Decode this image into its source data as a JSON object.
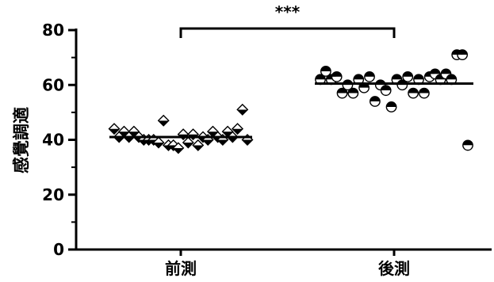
{
  "chart_data": {
    "type": "scatter",
    "title": "",
    "xlabel": "",
    "ylabel": "感覺調適",
    "ylim": [
      0,
      80
    ],
    "yticks": [
      0,
      20,
      40,
      60,
      80
    ],
    "categories": [
      "前測",
      "後測"
    ],
    "grid": false,
    "legend": "none",
    "series": [
      {
        "category": "前測",
        "marker": "half-filled-diamond",
        "mean": 41,
        "values": [
          44,
          41,
          43,
          41,
          43,
          41,
          40,
          40,
          40,
          39,
          47,
          38,
          38,
          37,
          42,
          39,
          42,
          38,
          41,
          40,
          43,
          41,
          40,
          43,
          41,
          44,
          51,
          40
        ]
      },
      {
        "category": "後測",
        "marker": "half-filled-circle",
        "mean": 60.5,
        "values": [
          62,
          65,
          62,
          63,
          57,
          60,
          57,
          62,
          59,
          63,
          54,
          60,
          58,
          52,
          62,
          60,
          63,
          57,
          62,
          57,
          63,
          64,
          62,
          64,
          62,
          71,
          71,
          38
        ]
      }
    ],
    "annotation": {
      "label": "***",
      "from": "前測",
      "to": "後測"
    }
  },
  "colors": {
    "axis": "#000000",
    "marker_fill": "#000000",
    "marker_empty": "#ffffff"
  }
}
